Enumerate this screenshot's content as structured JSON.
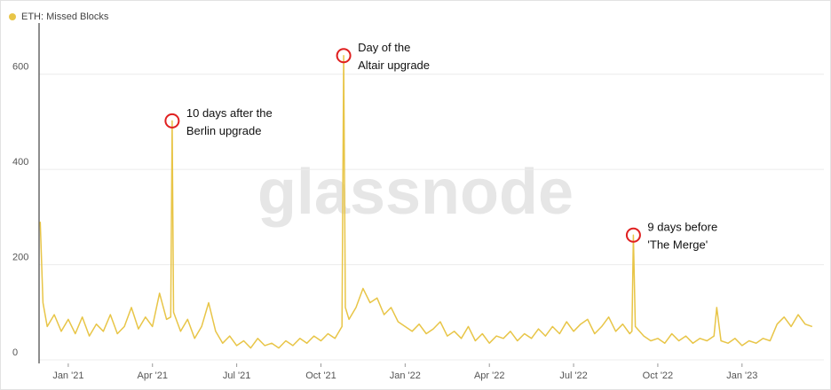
{
  "chart_data": {
    "type": "line",
    "watermark": "glassnode",
    "series": [
      {
        "name": "ETH: Missed Blocks",
        "color": "#e8c547",
        "x": [
          -1,
          -0.9,
          -0.75,
          -0.5,
          -0.25,
          0,
          0.25,
          0.5,
          0.75,
          1,
          1.25,
          1.5,
          1.75,
          2,
          2.25,
          2.5,
          2.75,
          3,
          3.25,
          3.5,
          3.65,
          3.7,
          3.75,
          4,
          4.25,
          4.5,
          4.75,
          5,
          5.25,
          5.5,
          5.75,
          6,
          6.25,
          6.5,
          6.75,
          7,
          7.25,
          7.5,
          7.75,
          8,
          8.25,
          8.5,
          8.75,
          9,
          9.25,
          9.5,
          9.75,
          9.81,
          9.87,
          10,
          10.25,
          10.5,
          10.75,
          11,
          11.25,
          11.5,
          11.75,
          12,
          12.25,
          12.5,
          12.75,
          13,
          13.25,
          13.5,
          13.75,
          14,
          14.25,
          14.5,
          14.75,
          15,
          15.25,
          15.5,
          15.75,
          16,
          16.25,
          16.5,
          16.75,
          17,
          17.25,
          17.5,
          17.75,
          18,
          18.25,
          18.5,
          18.75,
          19,
          19.25,
          19.5,
          19.75,
          20,
          20.08,
          20.13,
          20.2,
          20.5,
          20.75,
          21,
          21.25,
          21.5,
          21.75,
          22,
          22.25,
          22.5,
          22.75,
          23,
          23.1,
          23.25,
          23.5,
          23.75,
          24,
          24.25,
          24.5,
          24.75,
          25,
          25.25,
          25.5,
          25.75,
          26,
          26.25,
          26.5
        ],
        "values": [
          290,
          120,
          70,
          95,
          60,
          85,
          55,
          90,
          50,
          75,
          60,
          95,
          55,
          70,
          110,
          65,
          90,
          70,
          140,
          85,
          90,
          502,
          100,
          60,
          85,
          45,
          70,
          120,
          60,
          35,
          50,
          30,
          40,
          25,
          45,
          30,
          35,
          25,
          40,
          30,
          45,
          35,
          50,
          40,
          55,
          45,
          70,
          639,
          110,
          85,
          110,
          150,
          120,
          130,
          95,
          110,
          80,
          70,
          60,
          75,
          55,
          65,
          80,
          50,
          60,
          45,
          70,
          40,
          55,
          35,
          50,
          45,
          60,
          40,
          55,
          45,
          65,
          50,
          70,
          55,
          80,
          60,
          75,
          85,
          55,
          70,
          90,
          60,
          75,
          55,
          60,
          262,
          70,
          50,
          40,
          45,
          35,
          55,
          40,
          50,
          35,
          45,
          40,
          50,
          110,
          40,
          35,
          45,
          30,
          40,
          35,
          45,
          40,
          75,
          90,
          70,
          95,
          75,
          70
        ]
      }
    ],
    "xlim": [
      -1.04,
      26.6
    ],
    "xticks": [
      {
        "value": 0,
        "label": "Jan '21"
      },
      {
        "value": 3,
        "label": "Apr '21"
      },
      {
        "value": 6,
        "label": "Jul '21"
      },
      {
        "value": 9,
        "label": "Oct '21"
      },
      {
        "value": 12,
        "label": "Jan '22"
      },
      {
        "value": 15,
        "label": "Apr '22"
      },
      {
        "value": 18,
        "label": "Jul '22"
      },
      {
        "value": 21,
        "label": "Oct '22"
      },
      {
        "value": 24,
        "label": "Jan '23"
      }
    ],
    "ylim": [
      0,
      700
    ],
    "yticks": [
      0,
      200,
      400,
      600
    ],
    "grid": true,
    "annotations": [
      {
        "lines": [
          "10 days after the",
          "Berlin upgrade"
        ]
      },
      {
        "lines": [
          "Day of the",
          "Altair upgrade"
        ]
      },
      {
        "lines": [
          "9 days before",
          "'The Merge'"
        ]
      }
    ]
  }
}
